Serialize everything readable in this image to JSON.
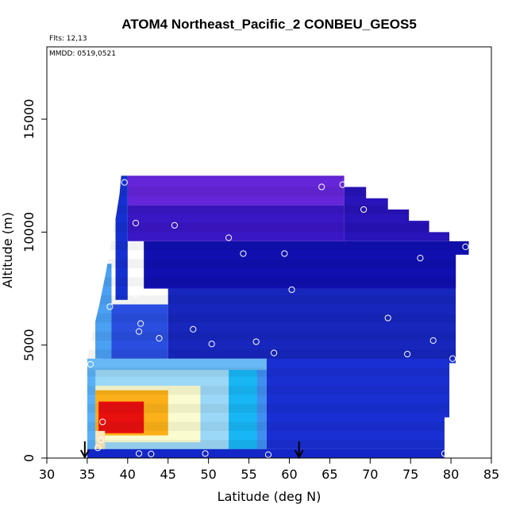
{
  "chart_data": {
    "type": "heatmap",
    "title": "ATOM4 Northeast_Pacific_2 CONBEU_GEOS5",
    "flights_note": "Flts: 12,13",
    "dates_note": "MMDD: 0519,0521",
    "xlabel": "Latitude (deg N)",
    "ylabel": "Altitude (m)",
    "xlim": [
      30,
      85
    ],
    "ylim": [
      0,
      18200
    ],
    "xticks": [
      30,
      35,
      40,
      45,
      50,
      55,
      60,
      65,
      70,
      75,
      80,
      85
    ],
    "yticks": [
      0,
      5000,
      10000,
      15000
    ],
    "grid": false,
    "curtain_band_height_m": 400,
    "curtain_top_edge": [
      {
        "lat": 35.0,
        "alt": 4400
      },
      {
        "lat": 35.7,
        "alt": 5600
      },
      {
        "lat": 36.5,
        "alt": 6800
      },
      {
        "lat": 37.3,
        "alt": 8200
      },
      {
        "lat": 38.0,
        "alt": 9600
      },
      {
        "lat": 38.6,
        "alt": 10800
      },
      {
        "lat": 39.0,
        "alt": 11700
      },
      {
        "lat": 39.2,
        "alt": 12500
      },
      {
        "lat": 66.8,
        "alt": 12500
      },
      {
        "lat": 66.8,
        "alt": 12000
      },
      {
        "lat": 69.5,
        "alt": 12000
      },
      {
        "lat": 69.5,
        "alt": 11500
      },
      {
        "lat": 72.2,
        "alt": 11500
      },
      {
        "lat": 72.2,
        "alt": 11000
      },
      {
        "lat": 74.8,
        "alt": 11000
      },
      {
        "lat": 74.8,
        "alt": 10500
      },
      {
        "lat": 77.3,
        "alt": 10500
      },
      {
        "lat": 77.3,
        "alt": 10000
      },
      {
        "lat": 79.8,
        "alt": 10000
      },
      {
        "lat": 79.8,
        "alt": 9600
      },
      {
        "lat": 82.2,
        "alt": 9600
      },
      {
        "lat": 82.2,
        "alt": 9000
      },
      {
        "lat": 80.6,
        "alt": 9000
      },
      {
        "lat": 80.6,
        "alt": 4200
      },
      {
        "lat": 79.8,
        "alt": 4200
      },
      {
        "lat": 79.8,
        "alt": 1800
      },
      {
        "lat": 79.2,
        "alt": 1800
      },
      {
        "lat": 79.2,
        "alt": 0
      }
    ],
    "curtain_left_edge": [
      {
        "alt": 0,
        "lat": 35.0
      },
      {
        "alt": 4400,
        "lat": 35.0
      },
      {
        "alt": 5600,
        "lat": 35.7
      },
      {
        "alt": 6800,
        "lat": 36.5
      },
      {
        "alt": 8200,
        "lat": 37.3
      },
      {
        "alt": 9600,
        "lat": 38.0
      },
      {
        "alt": 10800,
        "lat": 38.6
      },
      {
        "alt": 11700,
        "lat": 39.0
      },
      {
        "alt": 12500,
        "lat": 39.2
      }
    ],
    "color_zones": [
      {
        "lat": [
          35.0,
          79.2
        ],
        "alt": [
          0,
          400
        ],
        "color": "#1326c8"
      },
      {
        "lat": [
          36.0,
          57.2
        ],
        "alt": [
          400,
          3900
        ],
        "color": "#3f8ff0"
      },
      {
        "lat": [
          36.0,
          56.0
        ],
        "alt": [
          400,
          3900
        ],
        "color": "#18b6f5"
      },
      {
        "lat": [
          36.0,
          52.5
        ],
        "alt": [
          400,
          3900
        ],
        "color": "#9bd8f7"
      },
      {
        "lat": [
          36.0,
          49.0
        ],
        "alt": [
          700,
          3200
        ],
        "color": "#fbfbd0"
      },
      {
        "lat": [
          36.0,
          45.0
        ],
        "alt": [
          1000,
          3000
        ],
        "color": "#fbb019"
      },
      {
        "lat": [
          36.4,
          42.0
        ],
        "alt": [
          1100,
          2500
        ],
        "color": "#e80f0f"
      },
      {
        "lat": [
          36.0,
          37.2
        ],
        "alt": [
          400,
          1200
        ],
        "color": "#fde6b8"
      },
      {
        "lat": [
          35.0,
          36.0
        ],
        "alt": [
          400,
          3900
        ],
        "color": "#5ab0f8"
      },
      {
        "lat": [
          35.0,
          57.2
        ],
        "alt": [
          3900,
          4400
        ],
        "color": "#67b8f5"
      },
      {
        "lat": [
          57.2,
          80.6
        ],
        "alt": [
          400,
          4600
        ],
        "color": "#1a2fd2"
      },
      {
        "lat": [
          37.0,
          45.0
        ],
        "alt": [
          4400,
          6800
        ],
        "color": "#2a4ee0"
      },
      {
        "lat": [
          36.0,
          38.0
        ],
        "alt": [
          4400,
          8600
        ],
        "color": "#4aa0f3"
      },
      {
        "lat": [
          45.0,
          80.6
        ],
        "alt": [
          4400,
          7500
        ],
        "color": "#1726bd"
      },
      {
        "lat": [
          42.0,
          82.2
        ],
        "alt": [
          7500,
          9600
        ],
        "color": "#1010b0"
      },
      {
        "lat": [
          40.0,
          66.8
        ],
        "alt": [
          9600,
          11200
        ],
        "color": "#3a17c4"
      },
      {
        "lat": [
          40.0,
          66.8
        ],
        "alt": [
          11200,
          12500
        ],
        "color": "#6525d8"
      },
      {
        "lat": [
          66.8,
          80.0
        ],
        "alt": [
          9600,
          12000
        ],
        "color": "#2814b8"
      },
      {
        "lat": [
          38.5,
          40.0
        ],
        "alt": [
          7000,
          12500
        ],
        "color": "#1530d0"
      }
    ],
    "observations": [
      {
        "lat": 39.6,
        "alt": 12200
      },
      {
        "lat": 64.0,
        "alt": 12000
      },
      {
        "lat": 66.6,
        "alt": 12100
      },
      {
        "lat": 69.2,
        "alt": 11000
      },
      {
        "lat": 41.0,
        "alt": 10400
      },
      {
        "lat": 45.8,
        "alt": 10300
      },
      {
        "lat": 52.5,
        "alt": 9750
      },
      {
        "lat": 54.3,
        "alt": 9050
      },
      {
        "lat": 59.4,
        "alt": 9050
      },
      {
        "lat": 76.2,
        "alt": 8850
      },
      {
        "lat": 81.8,
        "alt": 9350
      },
      {
        "lat": 41.0,
        "alt": 7250
      },
      {
        "lat": 60.3,
        "alt": 7450
      },
      {
        "lat": 37.8,
        "alt": 6700
      },
      {
        "lat": 72.2,
        "alt": 6200
      },
      {
        "lat": 41.6,
        "alt": 5950
      },
      {
        "lat": 48.1,
        "alt": 5700
      },
      {
        "lat": 41.4,
        "alt": 5600
      },
      {
        "lat": 43.9,
        "alt": 5300
      },
      {
        "lat": 50.4,
        "alt": 5050
      },
      {
        "lat": 55.9,
        "alt": 5150
      },
      {
        "lat": 77.8,
        "alt": 5200
      },
      {
        "lat": 58.1,
        "alt": 4650
      },
      {
        "lat": 74.6,
        "alt": 4600
      },
      {
        "lat": 80.2,
        "alt": 4400
      },
      {
        "lat": 35.4,
        "alt": 4150
      },
      {
        "lat": 36.9,
        "alt": 1600
      },
      {
        "lat": 36.7,
        "alt": 800
      },
      {
        "lat": 36.3,
        "alt": 450
      },
      {
        "lat": 41.4,
        "alt": 200
      },
      {
        "lat": 42.9,
        "alt": 180
      },
      {
        "lat": 49.6,
        "alt": 200
      },
      {
        "lat": 57.4,
        "alt": 150
      },
      {
        "lat": 79.2,
        "alt": 200
      }
    ],
    "arrows": [
      {
        "lat": 34.7
      },
      {
        "lat": 61.2
      }
    ]
  }
}
